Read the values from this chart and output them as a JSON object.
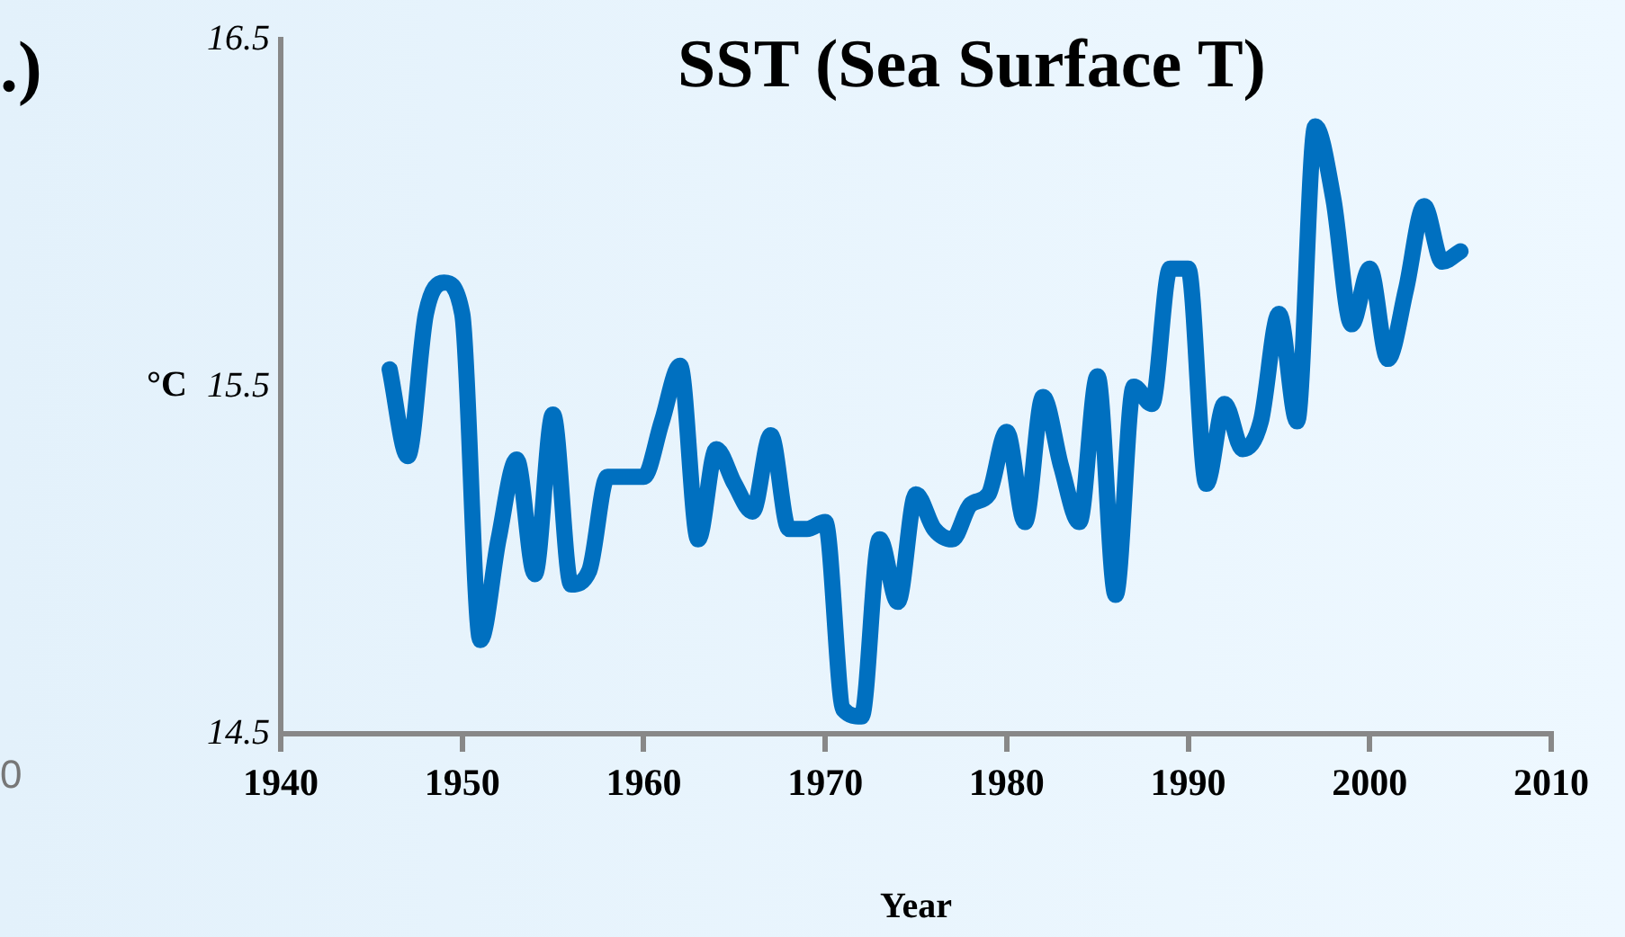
{
  "chart_data": {
    "type": "line",
    "title": "SST (Sea Surface T)",
    "xlabel": "Year",
    "ylabel": "°C",
    "annotations": [
      ".)",
      "0"
    ],
    "x": [
      1946,
      1947,
      1948,
      1949,
      1950,
      1951,
      1952,
      1953,
      1954,
      1955,
      1956,
      1957,
      1958,
      1959,
      1960,
      1961,
      1962,
      1963,
      1964,
      1965,
      1966,
      1967,
      1968,
      1969,
      1970,
      1971,
      1972,
      1973,
      1974,
      1975,
      1976,
      1977,
      1978,
      1979,
      1980,
      1981,
      1982,
      1983,
      1984,
      1985,
      1986,
      1987,
      1988,
      1989,
      1990,
      1991,
      1992,
      1993,
      1994,
      1995,
      1996,
      1997,
      1998,
      1999,
      2000,
      2001,
      2002,
      2003,
      2004,
      2005
    ],
    "series": [
      {
        "color": "#0070c0",
        "values": [
          15.55,
          15.3,
          15.71,
          15.8,
          15.71,
          14.77,
          15.06,
          15.29,
          14.96,
          15.42,
          14.93,
          14.97,
          15.24,
          15.24,
          15.24,
          15.4,
          15.56,
          15.06,
          15.32,
          15.22,
          15.14,
          15.36,
          15.09,
          15.09,
          15.11,
          14.57,
          14.55,
          15.06,
          14.88,
          15.19,
          15.09,
          15.06,
          15.16,
          15.19,
          15.37,
          15.11,
          15.47,
          15.27,
          15.11,
          15.53,
          14.9,
          15.5,
          15.45,
          15.84,
          15.84,
          15.22,
          15.45,
          15.32,
          15.4,
          15.71,
          15.4,
          16.25,
          16.04,
          15.68,
          15.84,
          15.58,
          15.78,
          16.02,
          15.86,
          15.89
        ]
      }
    ],
    "xlim": [
      1940,
      2010
    ],
    "xticks": [
      1940,
      1950,
      1960,
      1970,
      1980,
      1990,
      2000,
      2010
    ],
    "ylim": [
      14.5,
      16.5
    ],
    "yticks": [
      14.5,
      15.5,
      16.5
    ],
    "grid": false,
    "legend": false,
    "marker": "none",
    "line_style": "solid"
  }
}
